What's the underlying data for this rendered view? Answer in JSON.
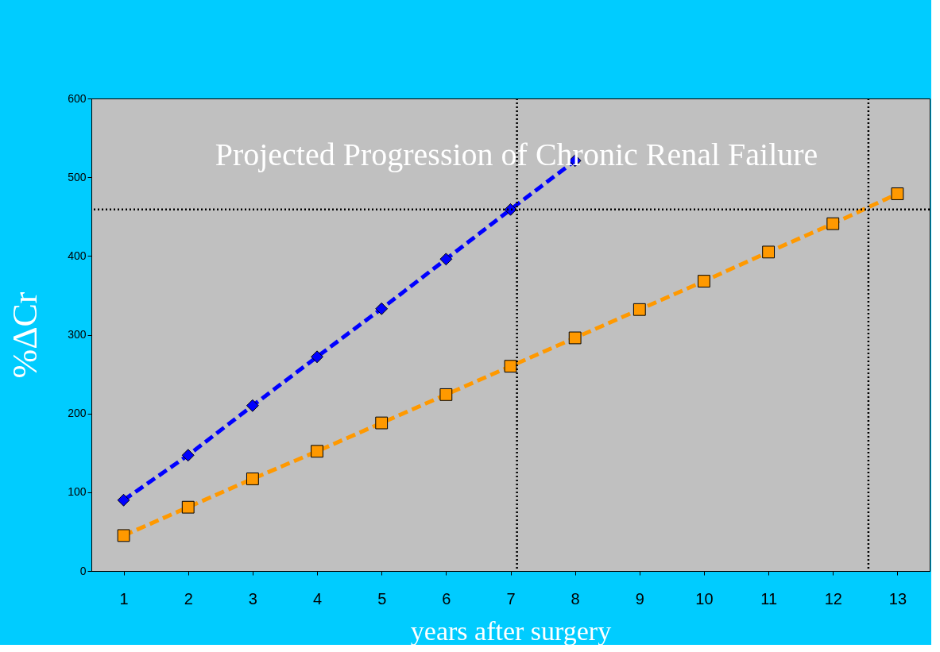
{
  "chart_data": {
    "type": "line",
    "title": "Projected Progression of Chronic Renal Failure",
    "xlabel": "years after surgery",
    "ylabel": "%ΔCr",
    "series": [
      {
        "color": "#0000ff",
        "marker": "diamond",
        "line_style": "dashed",
        "x": [
          1,
          2,
          3,
          4,
          5,
          6,
          7,
          8
        ],
        "values": [
          90,
          147,
          210,
          272,
          333,
          396,
          459,
          521
        ]
      },
      {
        "color": "#ff9900",
        "marker": "square",
        "line_style": "dashed",
        "x": [
          1,
          2,
          3,
          4,
          5,
          6,
          7,
          8,
          9,
          10,
          11,
          12,
          13
        ],
        "values": [
          45,
          81,
          117,
          152,
          188,
          224,
          260,
          296,
          332,
          368,
          405,
          441,
          479
        ]
      }
    ],
    "xlim": [
      0.5,
      13.5
    ],
    "xticks": [
      1,
      2,
      3,
      4,
      5,
      6,
      7,
      8,
      9,
      10,
      11,
      12,
      13
    ],
    "ylim": [
      0,
      600
    ],
    "yticks": [
      0,
      100,
      200,
      300,
      400,
      500,
      600
    ],
    "ref_lines": [
      {
        "axis": "y",
        "value": 459,
        "color": "#000000",
        "line_style": "dotted"
      },
      {
        "axis": "x",
        "value": 7.1,
        "color": "#000000",
        "line_style": "dotted"
      },
      {
        "axis": "x",
        "value": 12.55,
        "color": "#000000",
        "line_style": "dotted"
      }
    ],
    "grid": false
  }
}
